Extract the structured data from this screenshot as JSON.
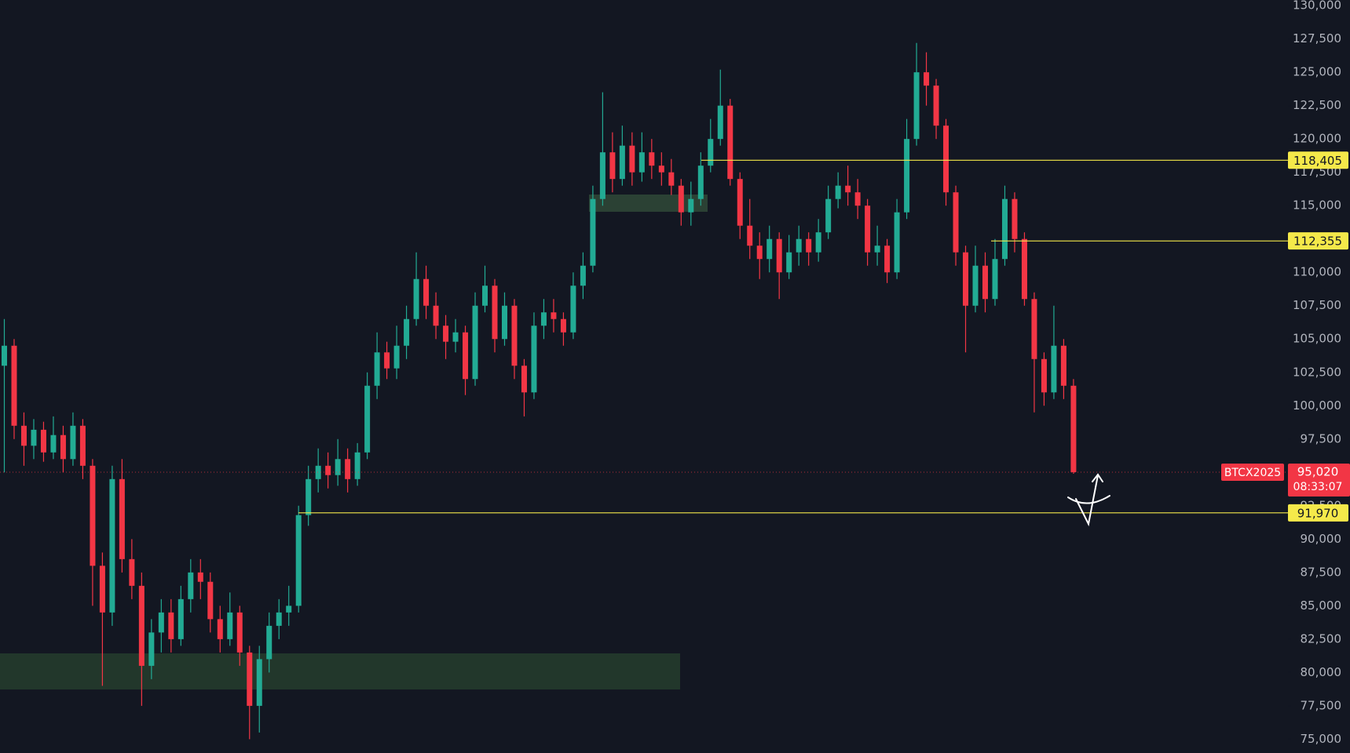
{
  "chart_data": {
    "type": "candlestick",
    "ylim": [
      73965,
      130419
    ],
    "yticks": [
      {
        "value": 75000,
        "label": "75,000"
      },
      {
        "value": 77500,
        "label": "77,500"
      },
      {
        "value": 80000,
        "label": "80,000"
      },
      {
        "value": 82500,
        "label": "82,500"
      },
      {
        "value": 85000,
        "label": "85,000"
      },
      {
        "value": 87500,
        "label": "87,500"
      },
      {
        "value": 90000,
        "label": "90,000"
      },
      {
        "value": 92500,
        "label": "92,500"
      },
      {
        "value": 95000,
        "label": "95,000"
      },
      {
        "value": 97500,
        "label": "97,500"
      },
      {
        "value": 100000,
        "label": "100,000"
      },
      {
        "value": 102500,
        "label": "102,500"
      },
      {
        "value": 105000,
        "label": "105,000"
      },
      {
        "value": 107500,
        "label": "107,500"
      },
      {
        "value": 110000,
        "label": "110,000"
      },
      {
        "value": 112500,
        "label": "112,500"
      },
      {
        "value": 115000,
        "label": "115,000"
      },
      {
        "value": 117500,
        "label": "117,500"
      },
      {
        "value": 120000,
        "label": "120,000"
      },
      {
        "value": 122500,
        "label": "122,500"
      },
      {
        "value": 125000,
        "label": "125,000"
      },
      {
        "value": 127500,
        "label": "127,500"
      },
      {
        "value": 130000,
        "label": "130,000"
      }
    ],
    "up_color": "#22ab94",
    "down_color": "#f23645",
    "level_color": "#f5e94a",
    "open": [
      103000,
      104500,
      98500,
      97000,
      98200,
      96500,
      97800,
      96000,
      98500,
      95500,
      88000,
      84500,
      94500,
      88500,
      86500,
      80500,
      83000,
      84500,
      82500,
      85500,
      87500,
      86800,
      84000,
      82500,
      84500,
      81500,
      77500,
      81000,
      83500,
      84500,
      85000,
      91800,
      94500,
      95500,
      94800,
      96000,
      94500,
      96500,
      101500,
      104000,
      102800,
      104500,
      106500,
      109500,
      107500,
      106000,
      104800,
      105500,
      102000,
      107500,
      109000,
      105000,
      107500,
      103000,
      101000,
      106000,
      107000,
      106500,
      105500,
      109000,
      110500,
      115500,
      119000,
      117000,
      119500,
      117500,
      119000,
      118000,
      117500,
      116500,
      114500,
      115500,
      118000,
      120000,
      122500,
      117000,
      113500,
      112000,
      111000,
      112500,
      110000,
      111500,
      112500,
      111500,
      113000,
      115500,
      116500,
      116000,
      115000,
      111500,
      112000,
      110000,
      114500,
      120000,
      125000,
      124000,
      121000,
      116000,
      111500,
      107500,
      110500,
      108000,
      111000,
      115500,
      112500,
      108000,
      103500,
      101000,
      104500,
      101500
    ],
    "high": [
      106500,
      105000,
      99500,
      99000,
      98800,
      99200,
      98500,
      99500,
      99000,
      96000,
      89000,
      95500,
      96000,
      90000,
      87500,
      84000,
      85500,
      85500,
      86500,
      88500,
      88500,
      87500,
      85000,
      86000,
      85000,
      82000,
      82000,
      84500,
      85500,
      86500,
      92500,
      95500,
      96800,
      96500,
      97500,
      96800,
      97200,
      102500,
      105500,
      104800,
      106000,
      107500,
      111500,
      110500,
      108500,
      106800,
      106500,
      106000,
      108500,
      110500,
      109500,
      108500,
      108000,
      103500,
      107000,
      108000,
      108000,
      107000,
      110000,
      111500,
      116500,
      123500,
      120500,
      121000,
      120500,
      120500,
      120000,
      119000,
      118500,
      117000,
      116800,
      119000,
      121500,
      125200,
      123000,
      117500,
      115500,
      113000,
      113500,
      113000,
      112800,
      113500,
      113000,
      114000,
      116500,
      117500,
      118000,
      117000,
      115500,
      113500,
      112500,
      115500,
      121500,
      127200,
      126500,
      124500,
      121500,
      116500,
      112000,
      112000,
      111500,
      112500,
      116500,
      116000,
      113000,
      108500,
      104000,
      107500,
      105000,
      102000
    ],
    "low": [
      95000,
      97500,
      95500,
      96000,
      95800,
      96000,
      95000,
      95500,
      94500,
      85000,
      79000,
      83500,
      87500,
      85500,
      77500,
      79500,
      81500,
      81500,
      82000,
      84500,
      85500,
      83000,
      81500,
      82000,
      80500,
      75000,
      75500,
      80000,
      82500,
      83500,
      84500,
      91000,
      93500,
      93800,
      94000,
      93500,
      94000,
      96000,
      100500,
      102000,
      102000,
      103500,
      106000,
      106500,
      105000,
      103500,
      104000,
      100800,
      101500,
      107000,
      104000,
      104500,
      102000,
      99200,
      100500,
      105000,
      105500,
      104500,
      105000,
      108000,
      110000,
      115000,
      116000,
      116500,
      116500,
      116800,
      117000,
      116500,
      115800,
      113500,
      113500,
      115000,
      117500,
      119500,
      116500,
      112500,
      111000,
      109500,
      110000,
      108000,
      109500,
      110500,
      110500,
      110800,
      112500,
      114800,
      115000,
      114000,
      110500,
      110500,
      109200,
      109500,
      114000,
      119500,
      122500,
      120000,
      115000,
      110500,
      104000,
      107000,
      107000,
      107500,
      110500,
      111500,
      107500,
      99500,
      100000,
      100500,
      100500,
      94900
    ],
    "close": [
      104500,
      98500,
      97000,
      98200,
      96500,
      97800,
      96000,
      98500,
      95500,
      88000,
      84500,
      94500,
      88500,
      86500,
      80500,
      83000,
      84500,
      82500,
      85500,
      87500,
      86800,
      84000,
      82500,
      84500,
      81500,
      77500,
      81000,
      83500,
      84500,
      85000,
      91800,
      94500,
      95500,
      94800,
      96000,
      94500,
      96500,
      101500,
      104000,
      102800,
      104500,
      106500,
      109500,
      107500,
      106000,
      104800,
      105500,
      102000,
      107500,
      109000,
      105000,
      107500,
      103000,
      101000,
      106000,
      107000,
      106500,
      105500,
      109000,
      110500,
      115500,
      119000,
      117000,
      119500,
      117500,
      119000,
      118000,
      117500,
      116500,
      114500,
      115500,
      118000,
      120000,
      122500,
      117000,
      113500,
      112000,
      111000,
      112500,
      110000,
      111500,
      112500,
      111500,
      113000,
      115500,
      116500,
      116000,
      115000,
      111500,
      112000,
      110000,
      114500,
      120000,
      125000,
      124000,
      121000,
      116000,
      111500,
      107500,
      110500,
      108000,
      111000,
      115500,
      112500,
      108000,
      103500,
      101000,
      104500,
      101500,
      95020
    ],
    "levels": [
      {
        "value": 118405,
        "label": "118,405"
      },
      {
        "value": 112355,
        "label": "112,355"
      },
      {
        "value": 91970,
        "label": "91,970"
      }
    ],
    "last_price": {
      "value": 95020,
      "label": "95,020",
      "symbol": "BTCX2025",
      "countdown": "08:33:07"
    }
  }
}
